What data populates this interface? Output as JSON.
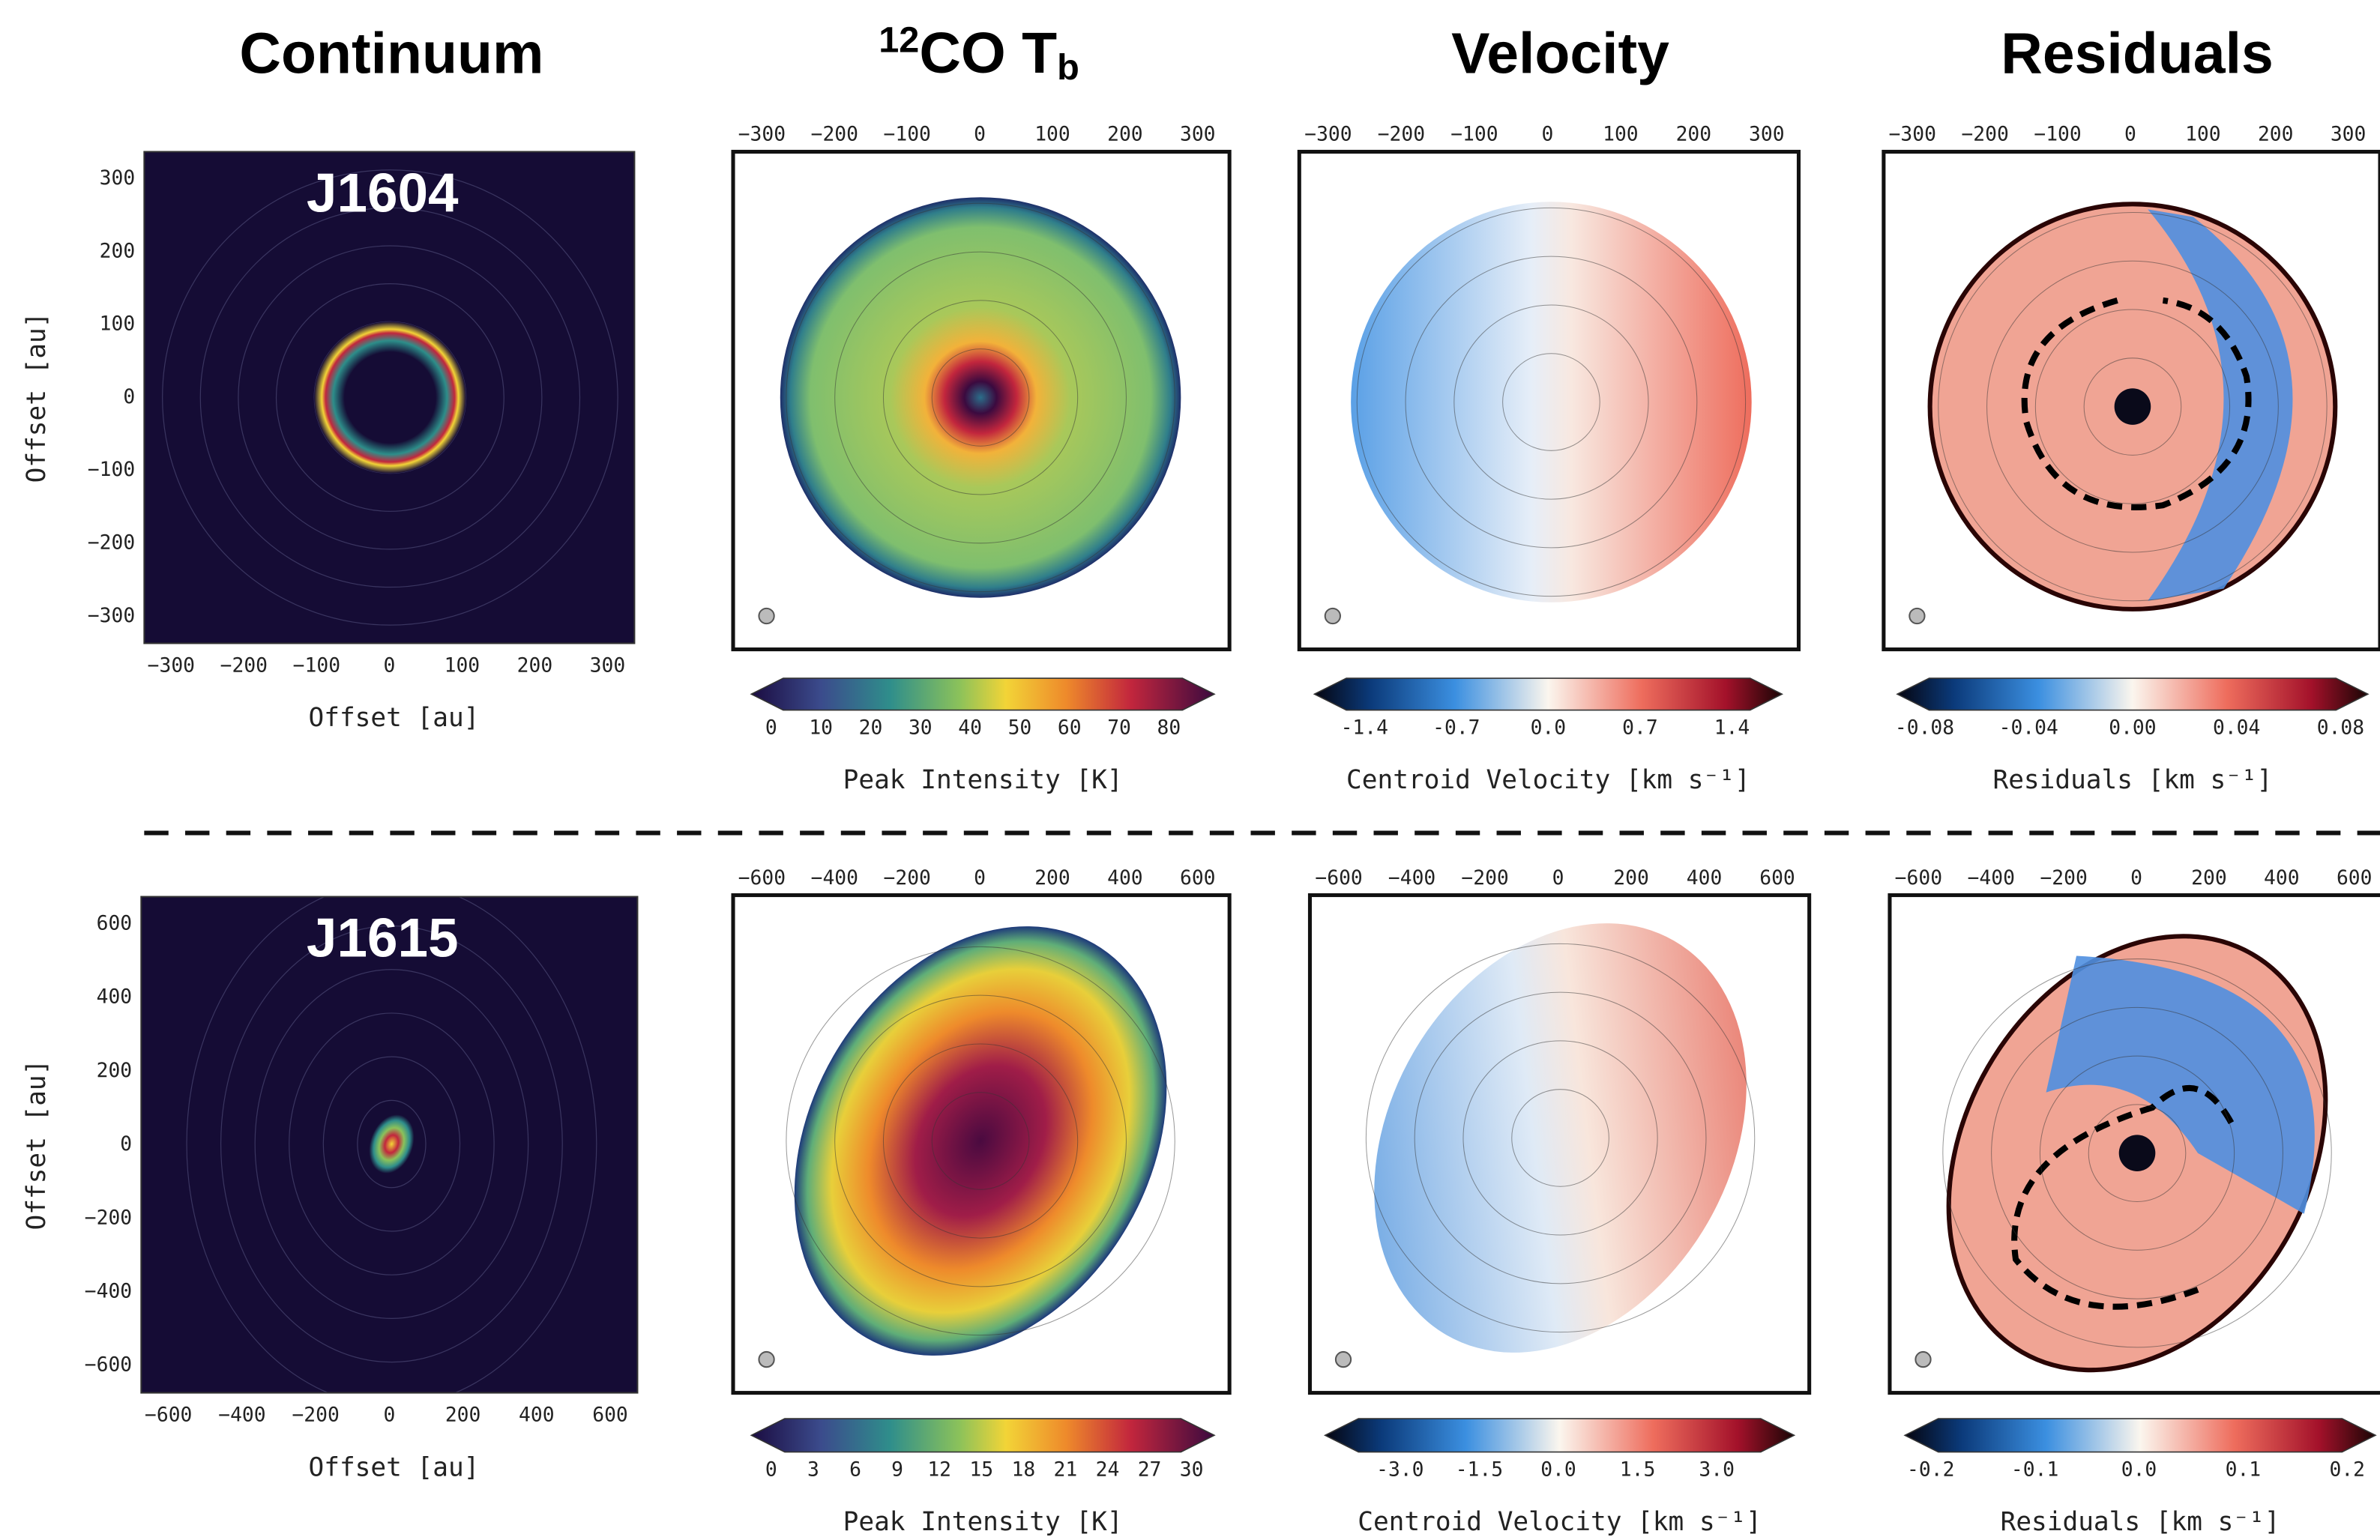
{
  "columns": [
    {
      "title": "Continuum"
    },
    {
      "title": {
        "sup": "12",
        "main": "CO T",
        "sub": "b"
      }
    },
    {
      "title": "Velocity"
    },
    {
      "title": "Residuals"
    }
  ],
  "rows": [
    {
      "name": "J1604",
      "panels": [
        {
          "xticks": [
            "−300",
            "−200",
            "−100",
            "0",
            "100",
            "200",
            "300"
          ],
          "yticks": [
            "300",
            "200",
            "100",
            "0",
            "−100",
            "−200",
            "−300"
          ],
          "xlabel": "Offset [au]",
          "ylabel": "Offset [au]"
        },
        {
          "top_ticks": [
            "−300",
            "−200",
            "−100",
            "0",
            "100",
            "200",
            "300"
          ],
          "colorbar": {
            "ticks": [
              "0",
              "10",
              "20",
              "30",
              "40",
              "50",
              "60",
              "70",
              "80"
            ],
            "label": "Peak Intensity [K]"
          }
        },
        {
          "top_ticks": [
            "−300",
            "−200",
            "−100",
            "0",
            "100",
            "200",
            "300"
          ],
          "colorbar": {
            "ticks": [
              "-1.4",
              "-0.7",
              "0.0",
              "0.7",
              "1.4"
            ],
            "label": "Centroid Velocity [km s⁻¹]"
          }
        },
        {
          "top_ticks": [
            "−300",
            "−200",
            "−100",
            "0",
            "100",
            "200",
            "300"
          ],
          "colorbar": {
            "ticks": [
              "-0.08",
              "-0.04",
              "0.00",
              "0.04",
              "0.08"
            ],
            "label": "Residuals [km s⁻¹]"
          }
        }
      ]
    },
    {
      "name": "J1615",
      "panels": [
        {
          "xticks": [
            "−600",
            "−400",
            "−200",
            "0",
            "200",
            "400",
            "600"
          ],
          "yticks": [
            "600",
            "400",
            "200",
            "0",
            "−200",
            "−400",
            "−600"
          ],
          "xlabel": "Offset [au]",
          "ylabel": "Offset [au]"
        },
        {
          "top_ticks": [
            "−600",
            "−400",
            "−200",
            "0",
            "200",
            "400",
            "600"
          ],
          "colorbar": {
            "ticks": [
              "0",
              "3",
              "6",
              "9",
              "12",
              "15",
              "18",
              "21",
              "24",
              "27",
              "30"
            ],
            "label": "Peak Intensity [K]"
          }
        },
        {
          "top_ticks": [
            "−600",
            "−400",
            "−200",
            "0",
            "200",
            "400",
            "600"
          ],
          "colorbar": {
            "ticks": [
              "-3.0",
              "-1.5",
              "0.0",
              "1.5",
              "3.0"
            ],
            "label": "Centroid Velocity [km s⁻¹]"
          }
        },
        {
          "top_ticks": [
            "−600",
            "−400",
            "−200",
            "0",
            "200",
            "400",
            "600"
          ],
          "colorbar": {
            "ticks": [
              "-0.2",
              "-0.1",
              "0.0",
              "0.1",
              "0.2"
            ],
            "label": "Residuals [km s⁻¹]"
          }
        }
      ]
    }
  ]
}
